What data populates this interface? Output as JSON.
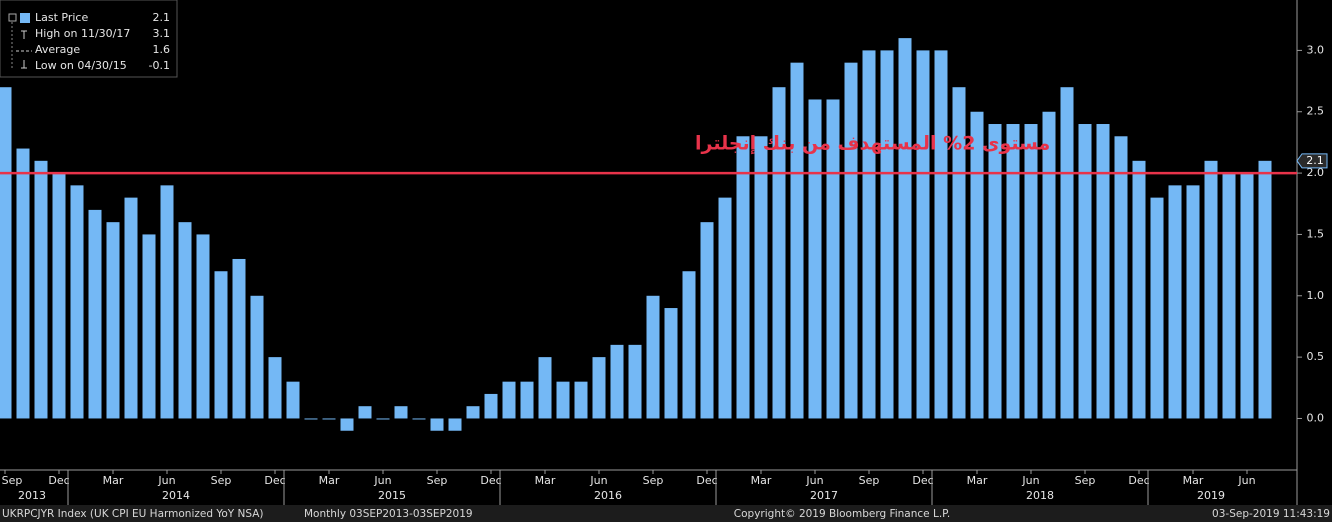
{
  "chart_data": {
    "type": "bar",
    "color": "#74b8f5",
    "categories": [
      "Sep",
      null,
      null,
      "Dec",
      null,
      null,
      "Mar",
      null,
      null,
      "Jun",
      null,
      null,
      "Sep",
      null,
      null,
      "Dec",
      null,
      null,
      "Mar",
      null,
      null,
      "Jun",
      null,
      null,
      "Sep",
      null,
      null,
      "Dec",
      null,
      null,
      "Mar",
      null,
      null,
      "Jun",
      null,
      null,
      "Sep",
      null,
      null,
      "Dec",
      null,
      null,
      "Mar",
      null,
      null,
      "Jun",
      null,
      null,
      "Sep",
      null,
      null,
      "Dec",
      null,
      null,
      "Mar",
      null,
      null,
      "Jun",
      null,
      null,
      "Sep",
      null,
      null,
      "Dec",
      null,
      null,
      "Mar",
      null,
      null,
      "Jun",
      null
    ],
    "values": [
      2.7,
      2.2,
      2.1,
      2.0,
      1.9,
      1.7,
      1.6,
      1.8,
      1.5,
      1.9,
      1.6,
      1.5,
      1.2,
      1.3,
      1.0,
      0.5,
      0.3,
      0.0,
      0.0,
      -0.1,
      0.1,
      0.0,
      0.1,
      0.0,
      -0.1,
      -0.1,
      0.1,
      0.2,
      0.3,
      0.3,
      0.5,
      0.3,
      0.3,
      0.5,
      0.6,
      0.6,
      1.0,
      0.9,
      1.2,
      1.6,
      1.8,
      2.3,
      2.3,
      2.7,
      2.9,
      2.6,
      2.6,
      2.9,
      3.0,
      3.0,
      3.1,
      3.0,
      3.0,
      2.7,
      2.5,
      2.4,
      2.4,
      2.4,
      2.5,
      2.7,
      2.4,
      2.4,
      2.3,
      2.1,
      1.8,
      1.9,
      1.9,
      2.1,
      2.0,
      2.0,
      2.1
    ],
    "years": [
      {
        "label": "2013",
        "first": 0,
        "last": 3
      },
      {
        "label": "2014",
        "first": 4,
        "last": 15
      },
      {
        "label": "2015",
        "first": 16,
        "last": 27
      },
      {
        "label": "2016",
        "first": 28,
        "last": 39
      },
      {
        "label": "2017",
        "first": 40,
        "last": 51
      },
      {
        "label": "2018",
        "first": 52,
        "last": 63
      },
      {
        "label": "2019",
        "first": 64,
        "last": 70
      }
    ],
    "ylim": [
      -0.42,
      3.37
    ],
    "yticks": [
      {
        "value": 0,
        "label": "0.0"
      },
      {
        "value": 0.5,
        "label": "0.5"
      },
      {
        "value": 1,
        "label": "1.0"
      },
      {
        "value": 1.5,
        "label": "1.5"
      },
      {
        "value": 2,
        "label": "2.0"
      },
      {
        "value": 2.5,
        "label": "2.5"
      },
      {
        "value": 3,
        "label": "3.0"
      }
    ],
    "reference_line": {
      "value": 2,
      "label": "مستوى 2% المستهدف من بنك إنجلترا",
      "color": "#e8334a"
    },
    "legend": [
      {
        "label": "Last Price",
        "value": 2.1
      },
      {
        "label": "High on 11/30/17",
        "value": 3.1
      },
      {
        "label": "Average",
        "value": 1.6
      },
      {
        "label": "Low on 04/30/15",
        "value": -0.1
      }
    ],
    "footer": {
      "ticker": "UKRPCJYR Index (UK CPI EU Harmonized YoY NSA)",
      "period": "Monthly 03SEP2013-03SEP2019",
      "copyright": "Copyright© 2019 Bloomberg Finance L.P.",
      "timestamp": "03-Sep-2019 11:43:19"
    }
  }
}
